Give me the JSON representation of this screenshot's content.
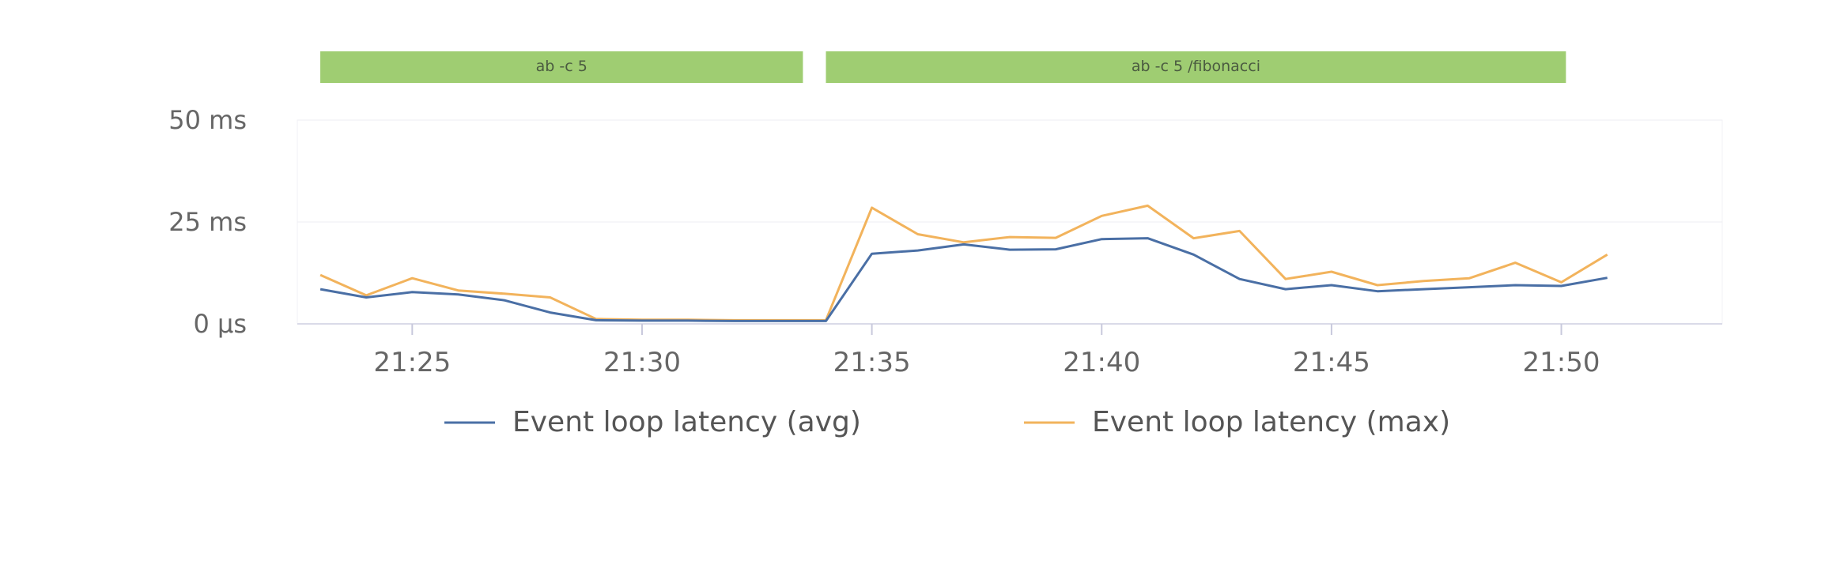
{
  "chart_data": {
    "type": "line",
    "x": [
      "21:23",
      "21:24",
      "21:25",
      "21:26",
      "21:27",
      "21:28",
      "21:29",
      "21:30",
      "21:31",
      "21:32",
      "21:33",
      "21:34",
      "21:35",
      "21:36",
      "21:37",
      "21:38",
      "21:39",
      "21:40",
      "21:41",
      "21:42",
      "21:43",
      "21:44",
      "21:45",
      "21:46",
      "21:47",
      "21:48",
      "21:49",
      "21:50",
      "21:51"
    ],
    "series": [
      {
        "name": "Event loop latency (avg)",
        "color": "#4a6fa5",
        "values": [
          8.5,
          6.5,
          7.8,
          7.2,
          5.8,
          2.8,
          0.9,
          0.8,
          0.8,
          0.7,
          0.7,
          0.7,
          17.2,
          18.0,
          19.5,
          18.2,
          18.3,
          20.8,
          21.0,
          17.0,
          11.0,
          8.5,
          9.5,
          8.0,
          8.5,
          9.0,
          9.5,
          9.3,
          11.3
        ]
      },
      {
        "name": "Event loop latency (max)",
        "color": "#f2b35c",
        "values": [
          12.0,
          7.0,
          11.2,
          8.2,
          7.4,
          6.5,
          1.2,
          1.0,
          1.0,
          0.9,
          0.9,
          0.9,
          28.5,
          22.0,
          20.0,
          21.3,
          21.1,
          26.5,
          29.0,
          21.0,
          22.8,
          11.0,
          12.8,
          9.5,
          10.5,
          11.2,
          15.0,
          10.2,
          17.0
        ]
      }
    ],
    "x_ticks": [
      "21:25",
      "21:30",
      "21:35",
      "21:40",
      "21:45",
      "21:50"
    ],
    "y_ticks": [
      "0 μs",
      "25 ms",
      "50 ms"
    ],
    "ylim": [
      0,
      50
    ],
    "grid": true,
    "legend_position": "bottom",
    "annotations": [
      {
        "label": "ab -c 5",
        "start": "21:23",
        "end": "21:33.5"
      },
      {
        "label": "ab -c 5 /fibonacci",
        "start": "21:34",
        "end": "21:50.1"
      }
    ],
    "annotation_color": "#9fcd72"
  }
}
